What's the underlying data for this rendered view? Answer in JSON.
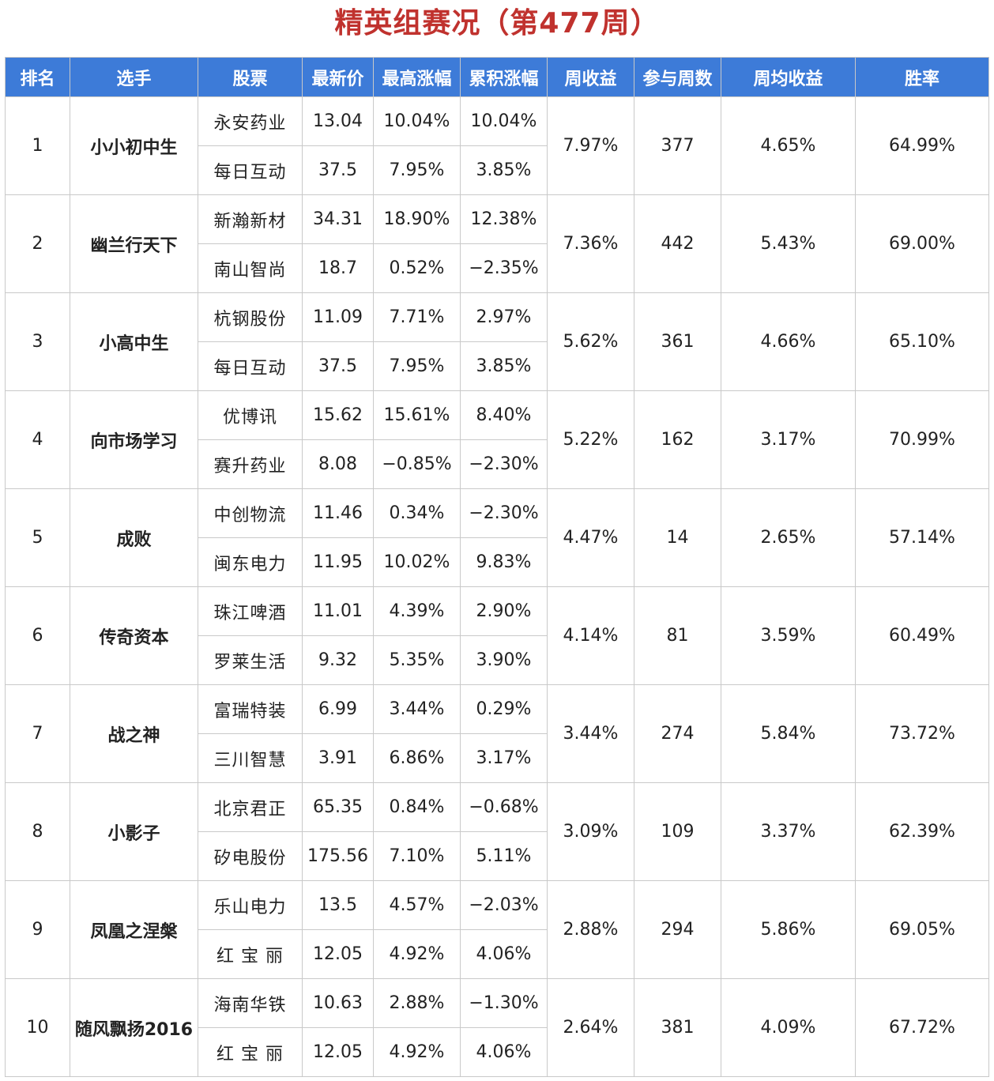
{
  "title": "精英组赛况（第477周）",
  "colors": {
    "header_bg": "#3d7bd8",
    "title": "#c0322e",
    "positive": "#d23a35",
    "negative": "#2f8a2f",
    "player": "#2f6ab8"
  },
  "headers": [
    "排名",
    "选手",
    "股票",
    "最新价",
    "最高涨幅",
    "累积涨幅",
    "周收益",
    "参与周数",
    "周均收益",
    "胜率"
  ],
  "rows": [
    {
      "rank": "1",
      "player": "小小初中生",
      "weekly": "7.97%",
      "weeks": "377",
      "avg": "4.65%",
      "win": "64.99%",
      "stocks": [
        {
          "name": "永安药业",
          "price": "13.04",
          "max": "10.04%",
          "cum": "10.04%"
        },
        {
          "name": "每日互动",
          "price": "37.5",
          "max": "7.95%",
          "cum": "3.85%"
        }
      ]
    },
    {
      "rank": "2",
      "player": "幽兰行天下",
      "weekly": "7.36%",
      "weeks": "442",
      "avg": "5.43%",
      "win": "69.00%",
      "stocks": [
        {
          "name": "新瀚新材",
          "price": "34.31",
          "max": "18.90%",
          "cum": "12.38%"
        },
        {
          "name": "南山智尚",
          "price": "18.7",
          "max": "0.52%",
          "cum": "−2.35%"
        }
      ]
    },
    {
      "rank": "3",
      "player": "小高中生",
      "weekly": "5.62%",
      "weeks": "361",
      "avg": "4.66%",
      "win": "65.10%",
      "stocks": [
        {
          "name": "杭钢股份",
          "price": "11.09",
          "max": "7.71%",
          "cum": "2.97%"
        },
        {
          "name": "每日互动",
          "price": "37.5",
          "max": "7.95%",
          "cum": "3.85%"
        }
      ]
    },
    {
      "rank": "4",
      "player": "向市场学习",
      "weekly": "5.22%",
      "weeks": "162",
      "avg": "3.17%",
      "win": "70.99%",
      "stocks": [
        {
          "name": "优博讯",
          "price": "15.62",
          "max": "15.61%",
          "cum": "8.40%"
        },
        {
          "name": "赛升药业",
          "price": "8.08",
          "max": "−0.85%",
          "cum": "−2.30%"
        }
      ]
    },
    {
      "rank": "5",
      "player": "成败",
      "weekly": "4.47%",
      "weeks": "14",
      "avg": "2.65%",
      "win": "57.14%",
      "stocks": [
        {
          "name": "中创物流",
          "price": "11.46",
          "max": "0.34%",
          "cum": "−2.30%"
        },
        {
          "name": "闽东电力",
          "price": "11.95",
          "max": "10.02%",
          "cum": "9.83%"
        }
      ]
    },
    {
      "rank": "6",
      "player": "传奇资本",
      "weekly": "4.14%",
      "weeks": "81",
      "avg": "3.59%",
      "win": "60.49%",
      "stocks": [
        {
          "name": "珠江啤酒",
          "price": "11.01",
          "max": "4.39%",
          "cum": "2.90%"
        },
        {
          "name": "罗莱生活",
          "price": "9.32",
          "max": "5.35%",
          "cum": "3.90%"
        }
      ]
    },
    {
      "rank": "7",
      "player": "战之神",
      "weekly": "3.44%",
      "weeks": "274",
      "avg": "5.84%",
      "win": "73.72%",
      "stocks": [
        {
          "name": "富瑞特装",
          "price": "6.99",
          "max": "3.44%",
          "cum": "0.29%"
        },
        {
          "name": "三川智慧",
          "price": "3.91",
          "max": "6.86%",
          "cum": "3.17%"
        }
      ]
    },
    {
      "rank": "8",
      "player": "小影子",
      "weekly": "3.09%",
      "weeks": "109",
      "avg": "3.37%",
      "win": "62.39%",
      "stocks": [
        {
          "name": "北京君正",
          "price": "65.35",
          "max": "0.84%",
          "cum": "−0.68%"
        },
        {
          "name": "矽电股份",
          "price": "175.56",
          "max": "7.10%",
          "cum": "5.11%"
        }
      ]
    },
    {
      "rank": "9",
      "player": "凤凰之涅槃",
      "weekly": "2.88%",
      "weeks": "294",
      "avg": "5.86%",
      "win": "69.05%",
      "stocks": [
        {
          "name": "乐山电力",
          "price": "13.5",
          "max": "4.57%",
          "cum": "−2.03%"
        },
        {
          "name": "红 宝 丽",
          "price": "12.05",
          "max": "4.92%",
          "cum": "4.06%"
        }
      ]
    },
    {
      "rank": "10",
      "player": "随风飘扬2016",
      "weekly": "2.64%",
      "weeks": "381",
      "avg": "4.09%",
      "win": "67.72%",
      "stocks": [
        {
          "name": "海南华铁",
          "price": "10.63",
          "max": "2.88%",
          "cum": "−1.30%"
        },
        {
          "name": "红 宝 丽",
          "price": "12.05",
          "max": "4.92%",
          "cum": "4.06%"
        }
      ]
    }
  ]
}
